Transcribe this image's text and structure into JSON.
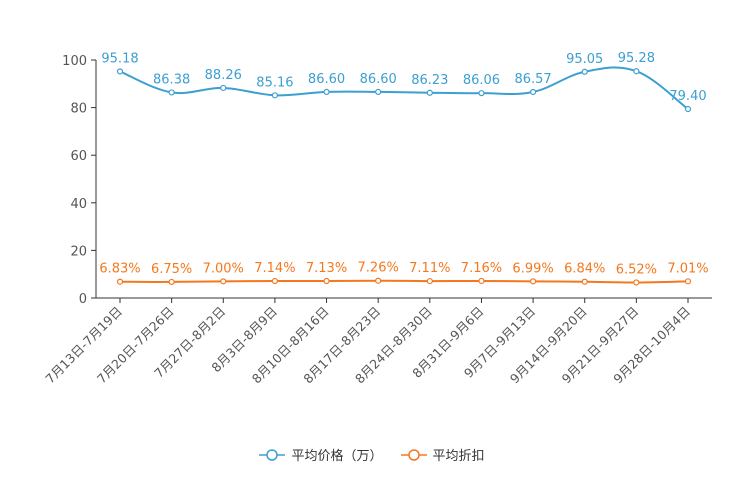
{
  "chart_data": {
    "type": "line",
    "categories": [
      "7月13日-7月19日",
      "7月20日-7月26日",
      "7月27日-8月2日",
      "8月3日-8月9日",
      "8月10日-8月16日",
      "8月17日-8月23日",
      "8月24日-8月30日",
      "8月31日-9月6日",
      "9月7日-9月13日",
      "9月14日-9月20日",
      "9月21日-9月27日",
      "9月28日-10月4日"
    ],
    "series": [
      {
        "name": "平均价格（万）",
        "color": "#3c9fd1",
        "values": [
          95.18,
          86.38,
          88.26,
          85.16,
          86.6,
          86.6,
          86.23,
          86.06,
          86.57,
          95.05,
          95.28,
          79.4
        ],
        "labels": [
          "95.18",
          "86.38",
          "88.26",
          "85.16",
          "86.60",
          "86.60",
          "86.23",
          "86.06",
          "86.57",
          "95.05",
          "95.28",
          "79.40"
        ]
      },
      {
        "name": "平均折扣",
        "color": "#f5781e",
        "values": [
          6.83,
          6.75,
          7.0,
          7.14,
          7.13,
          7.26,
          7.11,
          7.16,
          6.99,
          6.84,
          6.52,
          7.01
        ],
        "labels": [
          "6.83%",
          "6.75%",
          "7.00%",
          "7.14%",
          "7.13%",
          "7.26%",
          "7.11%",
          "7.16%",
          "6.99%",
          "6.84%",
          "6.52%",
          "7.01%"
        ]
      }
    ],
    "ylim": [
      0,
      100
    ],
    "yticks": [
      "0",
      "20",
      "40",
      "60",
      "80",
      "100"
    ],
    "title": "",
    "xlabel": "",
    "ylabel": "",
    "grid": false,
    "legend_position": "bottom-center"
  },
  "legend": {
    "items": [
      {
        "label": "平均价格（万）",
        "color": "#3c9fd1"
      },
      {
        "label": "平均折扣",
        "color": "#f5781e"
      }
    ]
  },
  "axis_color": "#333333",
  "label_color": "#555555"
}
